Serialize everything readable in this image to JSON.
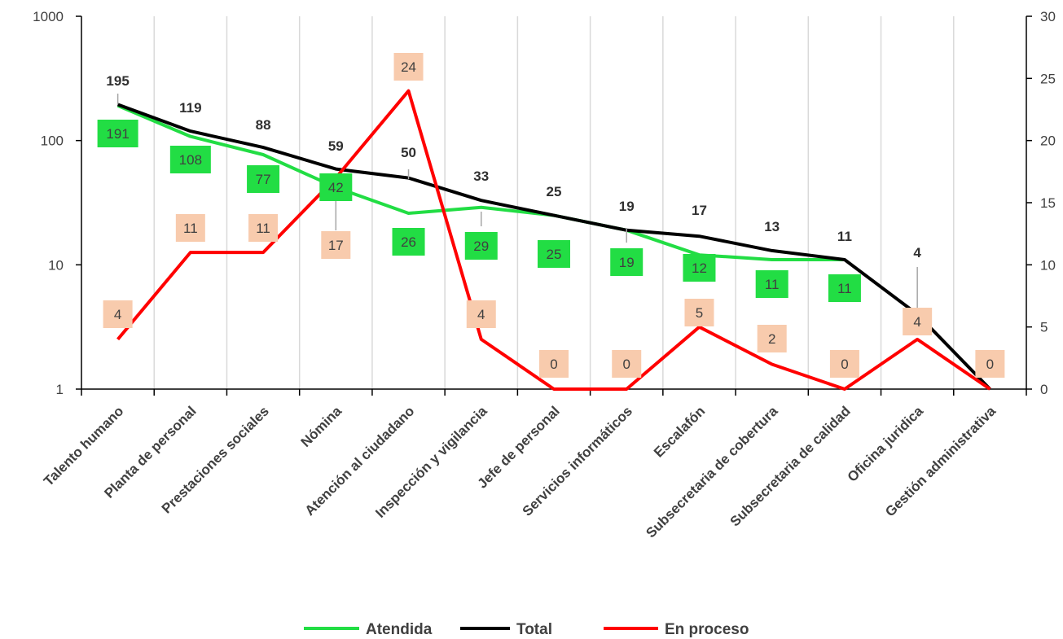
{
  "chart_data": {
    "type": "line",
    "categories": [
      "Talento humano",
      "Planta de personal",
      "Prestaciones sociales",
      "Nómina",
      "Atención al ciudadano",
      "Inspección y vigilancia",
      "Jefe de personal",
      "Servicios informáticos",
      "Escalafón",
      "Subsecretaria de cobertura",
      "Subsecretaria de calidad",
      "Oficina juridica",
      "Gestión administrativa"
    ],
    "series": [
      {
        "name": "Atendida",
        "axis": "left",
        "color": "#22dd44",
        "values": [
          191,
          108,
          77,
          42,
          26,
          29,
          25,
          19,
          12,
          11,
          11,
          null,
          null
        ],
        "labels": [
          "191",
          "108",
          "77",
          "42",
          "26",
          "29",
          "25",
          "19",
          "12",
          "11",
          "11",
          "",
          ""
        ]
      },
      {
        "name": "Total",
        "axis": "left",
        "color": "#000000",
        "values": [
          195,
          119,
          88,
          59,
          50,
          33,
          25,
          19,
          17,
          13,
          11,
          4,
          1
        ],
        "labels": [
          "195",
          "119",
          "88",
          "59",
          "50",
          "33",
          "25",
          "19",
          "17",
          "13",
          "11",
          "4",
          ""
        ]
      },
      {
        "name": "En proceso",
        "axis": "right",
        "color": "#ff0000",
        "values": [
          4,
          11,
          11,
          17,
          24,
          4,
          0,
          0,
          5,
          2,
          0,
          4,
          0
        ],
        "labels": [
          "4",
          "11",
          "11",
          "17",
          "24",
          "4",
          "0",
          "0",
          "5",
          "2",
          "0",
          "4",
          "0"
        ]
      }
    ],
    "y_left": {
      "scale": "log",
      "ticks": [
        "1",
        "10",
        "100",
        "1000"
      ],
      "range": [
        1,
        1000
      ]
    },
    "y_right": {
      "ticks": [
        "0",
        "5",
        "10",
        "15",
        "20",
        "25",
        "30"
      ],
      "range": [
        0,
        30
      ]
    },
    "grid": "vertical",
    "legend": "bottom"
  }
}
